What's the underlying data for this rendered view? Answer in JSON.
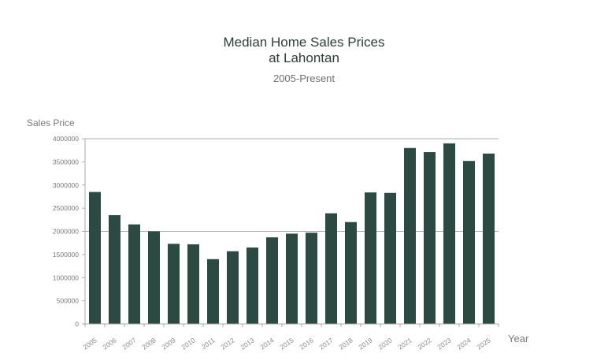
{
  "title_lines": [
    "Median Home Sales Prices",
    "at Lahontan"
  ],
  "subtitle": "2005-Present",
  "chart_data": {
    "type": "bar",
    "title": "Median Home Sales Prices at Lahontan",
    "subtitle": "2005-Present",
    "xlabel": "Year",
    "ylabel": "Sales Price",
    "ylim": [
      0,
      4000000
    ],
    "yticks": [
      0,
      500000,
      1000000,
      1500000,
      2000000,
      2500000,
      3000000,
      3500000,
      4000000
    ],
    "categories": [
      "2005",
      "2006",
      "2007",
      "2008",
      "2009",
      "2010",
      "2011",
      "2012",
      "2013",
      "2014",
      "2015",
      "2016",
      "2017",
      "2018",
      "2019",
      "2020",
      "2021",
      "2022",
      "2023",
      "2024",
      "2025"
    ],
    "values": [
      2850000,
      2350000,
      2150000,
      2000000,
      1730000,
      1720000,
      1400000,
      1570000,
      1650000,
      1870000,
      1950000,
      1970000,
      2390000,
      2200000,
      2840000,
      2830000,
      3800000,
      3710000,
      3900000,
      3520000,
      3680000
    ],
    "bar_color": "#2b4a42",
    "grid": "y-gridlines",
    "legend": "none"
  }
}
